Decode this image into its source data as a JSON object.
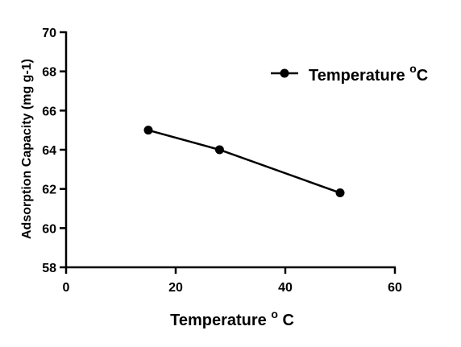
{
  "chart_data": {
    "type": "line",
    "title": "",
    "xlabel": {
      "text": "Temperature ",
      "sup": "o",
      "tail": " C"
    },
    "ylabel": "Adsorption Capacity (mg g-1)",
    "xlim": [
      0,
      60
    ],
    "ylim": [
      58,
      70
    ],
    "xticks": [
      0,
      20,
      40,
      60
    ],
    "yticks": [
      58,
      60,
      62,
      64,
      66,
      68,
      70
    ],
    "grid": false,
    "legend_position": "top-right",
    "series": [
      {
        "name": {
          "text": "Temperature ",
          "sup": "o",
          "tail": "C"
        },
        "color": "#000000",
        "marker": "filled-circle",
        "x": [
          15,
          28,
          50
        ],
        "y": [
          65.0,
          64.0,
          61.8
        ]
      }
    ]
  }
}
